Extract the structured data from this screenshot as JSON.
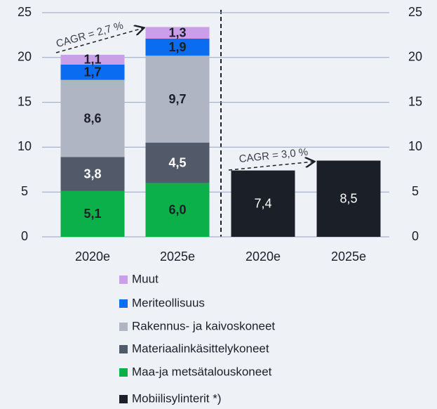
{
  "chart_data": {
    "type": "stacked_bar",
    "categories": [
      "2020e",
      "2025e",
      "2020e",
      "2025e"
    ],
    "series": [
      {
        "name": "Muut",
        "color": "#c9a0e8",
        "values": [
          1.1,
          1.3,
          null,
          null
        ],
        "value_labels": [
          "1,1",
          "1,3",
          null,
          null
        ]
      },
      {
        "name": "Meriteollisuus",
        "color": "#0a6cf0",
        "values": [
          1.7,
          1.9,
          null,
          null
        ],
        "value_labels": [
          "1,7",
          "1,9",
          null,
          null
        ]
      },
      {
        "name": "Rakennus- ja kaivoskoneet",
        "color": "#b0b5c4",
        "values": [
          8.6,
          9.7,
          null,
          null
        ],
        "value_labels": [
          "8,6",
          "9,7",
          null,
          null
        ]
      },
      {
        "name": "Materiaalinkäsittelykoneet",
        "color": "#525a6a",
        "values": [
          3.8,
          4.5,
          null,
          null
        ],
        "value_labels": [
          "3,8",
          "4,5",
          null,
          null
        ]
      },
      {
        "name": "Maa-ja metsätalouskoneet",
        "color": "#0bb04b",
        "values": [
          5.1,
          6.0,
          null,
          null
        ],
        "value_labels": [
          "5,1",
          "6,0",
          null,
          null
        ]
      },
      {
        "name": "Mobiilisylinterit *)",
        "color": "#1b1f27",
        "values": [
          null,
          null,
          7.4,
          8.5
        ],
        "value_labels": [
          null,
          null,
          "7,4",
          "8,5"
        ]
      }
    ],
    "annotations": [
      "CAGR = 2,7 %",
      "CAGR = 3,0 %"
    ],
    "ylim": [
      0,
      25
    ],
    "yticks": [
      0,
      5,
      10,
      15,
      20,
      25
    ],
    "y2lim": [
      0,
      25
    ],
    "y2ticks": [
      0,
      5,
      10,
      15,
      20,
      25
    ],
    "grid": true
  }
}
